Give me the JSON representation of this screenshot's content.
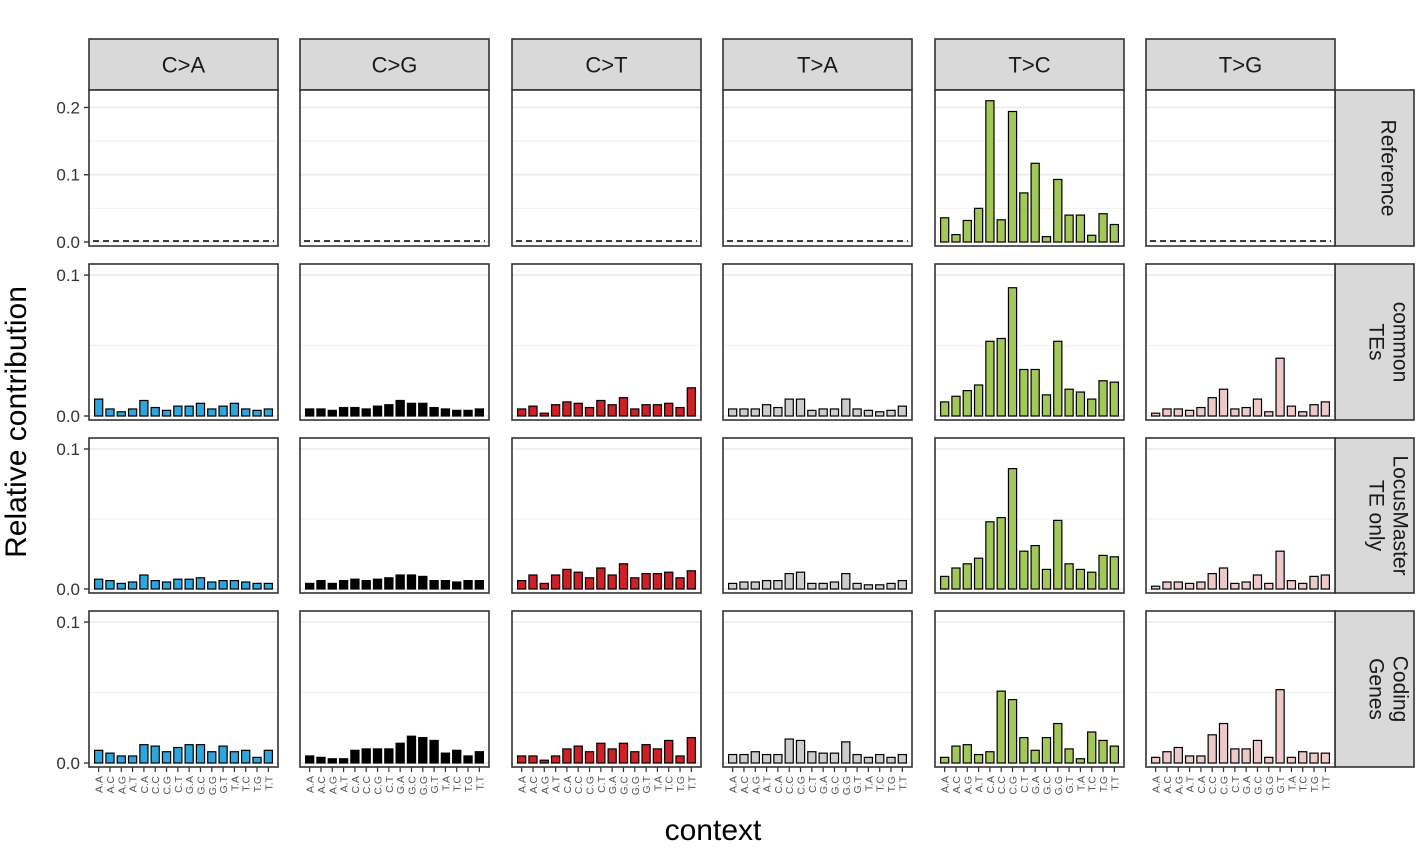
{
  "chart_data": {
    "type": "bar",
    "title": "",
    "xlabel": "context",
    "ylabel": "Relative contribution",
    "facet_columns": [
      "C>A",
      "C>G",
      "C>T",
      "T>A",
      "T>C",
      "T>G"
    ],
    "facet_rows": [
      {
        "label_lines": [
          "Reference"
        ],
        "ylim": [
          0,
          0.22
        ],
        "ticks": [
          0.0,
          0.1,
          0.2
        ],
        "tick_labels": [
          "0.0",
          "0.1",
          "0.2"
        ]
      },
      {
        "label_lines": [
          "common",
          "TEs"
        ],
        "ylim": [
          0,
          0.105
        ],
        "ticks": [
          0.0,
          0.1
        ],
        "tick_labels": [
          "0.0",
          "0.1"
        ]
      },
      {
        "label_lines": [
          "LocusMaster",
          "TE only"
        ],
        "ylim": [
          0,
          0.105
        ],
        "ticks": [
          0.0,
          0.1
        ],
        "tick_labels": [
          "0.0",
          "0.1"
        ]
      },
      {
        "label_lines": [
          "Coding",
          "Genes"
        ],
        "ylim": [
          0,
          0.105
        ],
        "ticks": [
          0.0,
          0.1
        ],
        "tick_labels": [
          "0.0",
          "0.1"
        ]
      }
    ],
    "contexts": [
      "A.A",
      "A.C",
      "A.G",
      "A.T",
      "C.A",
      "C.C",
      "C.G",
      "C.T",
      "G.A",
      "G.C",
      "G.G",
      "G.T",
      "T.A",
      "T.C",
      "T.G",
      "T.T"
    ],
    "colors": {
      "C>A": "#2ea5dc",
      "C>G": "#000000",
      "C>T": "#cd2027",
      "T>A": "#cccccc",
      "T>C": "#a3c759",
      "T>G": "#eec9c9"
    },
    "values": {
      "Reference": {
        "C>A": [
          0.001,
          0.001,
          0.001,
          0.001,
          0.001,
          0.001,
          0.001,
          0.001,
          0.001,
          0.001,
          0.001,
          0.001,
          0.001,
          0.001,
          0.001,
          0.001
        ],
        "C>G": [
          0.001,
          0.001,
          0.001,
          0.001,
          0.001,
          0.001,
          0.001,
          0.001,
          0.001,
          0.001,
          0.001,
          0.001,
          0.001,
          0.001,
          0.001,
          0.001
        ],
        "C>T": [
          0.001,
          0.001,
          0.001,
          0.001,
          0.001,
          0.001,
          0.001,
          0.002,
          0.001,
          0.001,
          0.001,
          0.001,
          0.001,
          0.001,
          0.001,
          0.001
        ],
        "T>A": [
          0.001,
          0.001,
          0.001,
          0.001,
          0.001,
          0.001,
          0.001,
          0.001,
          0.001,
          0.001,
          0.001,
          0.001,
          0.001,
          0.001,
          0.001,
          0.001
        ],
        "T>C": [
          0.036,
          0.011,
          0.032,
          0.05,
          0.21,
          0.033,
          0.194,
          0.073,
          0.117,
          0.008,
          0.093,
          0.04,
          0.04,
          0.01,
          0.042,
          0.026
        ],
        "T>G": [
          0.001,
          0.001,
          0.001,
          0.001,
          0.001,
          0.001,
          0.001,
          0.001,
          0.001,
          0.001,
          0.001,
          0.001,
          0.001,
          0.001,
          0.001,
          0.001
        ]
      },
      "common TEs": {
        "C>A": [
          0.012,
          0.005,
          0.003,
          0.005,
          0.011,
          0.006,
          0.004,
          0.007,
          0.007,
          0.009,
          0.005,
          0.007,
          0.009,
          0.005,
          0.004,
          0.005
        ],
        "C>G": [
          0.005,
          0.005,
          0.004,
          0.006,
          0.006,
          0.005,
          0.007,
          0.008,
          0.011,
          0.009,
          0.009,
          0.006,
          0.005,
          0.004,
          0.004,
          0.005
        ],
        "C>T": [
          0.005,
          0.007,
          0.002,
          0.008,
          0.01,
          0.009,
          0.006,
          0.011,
          0.008,
          0.013,
          0.005,
          0.008,
          0.008,
          0.009,
          0.006,
          0.02
        ],
        "T>A": [
          0.005,
          0.005,
          0.005,
          0.008,
          0.006,
          0.012,
          0.012,
          0.004,
          0.005,
          0.005,
          0.012,
          0.005,
          0.004,
          0.003,
          0.004,
          0.007
        ],
        "T>C": [
          0.01,
          0.014,
          0.018,
          0.022,
          0.053,
          0.055,
          0.091,
          0.033,
          0.033,
          0.015,
          0.053,
          0.019,
          0.017,
          0.012,
          0.025,
          0.024
        ],
        "T>G": [
          0.002,
          0.005,
          0.005,
          0.004,
          0.006,
          0.013,
          0.019,
          0.005,
          0.006,
          0.012,
          0.003,
          0.041,
          0.007,
          0.003,
          0.008,
          0.01
        ]
      },
      "LocusMaster TE only": {
        "C>A": [
          0.007,
          0.006,
          0.004,
          0.005,
          0.01,
          0.006,
          0.005,
          0.007,
          0.007,
          0.008,
          0.005,
          0.006,
          0.006,
          0.005,
          0.004,
          0.004
        ],
        "C>G": [
          0.004,
          0.006,
          0.004,
          0.006,
          0.007,
          0.006,
          0.007,
          0.008,
          0.01,
          0.01,
          0.009,
          0.006,
          0.006,
          0.005,
          0.006,
          0.006
        ],
        "C>T": [
          0.006,
          0.01,
          0.004,
          0.01,
          0.014,
          0.012,
          0.008,
          0.015,
          0.01,
          0.018,
          0.008,
          0.011,
          0.011,
          0.012,
          0.008,
          0.013
        ],
        "T>A": [
          0.004,
          0.005,
          0.005,
          0.006,
          0.006,
          0.011,
          0.012,
          0.004,
          0.004,
          0.005,
          0.011,
          0.004,
          0.003,
          0.003,
          0.004,
          0.006
        ],
        "T>C": [
          0.009,
          0.015,
          0.018,
          0.022,
          0.048,
          0.051,
          0.086,
          0.027,
          0.031,
          0.014,
          0.049,
          0.018,
          0.014,
          0.012,
          0.024,
          0.023
        ],
        "T>G": [
          0.002,
          0.005,
          0.005,
          0.004,
          0.005,
          0.011,
          0.015,
          0.004,
          0.005,
          0.01,
          0.004,
          0.027,
          0.006,
          0.004,
          0.009,
          0.01
        ]
      },
      "Coding Genes": {
        "C>A": [
          0.009,
          0.007,
          0.005,
          0.005,
          0.013,
          0.012,
          0.008,
          0.011,
          0.013,
          0.013,
          0.008,
          0.012,
          0.008,
          0.009,
          0.004,
          0.009
        ],
        "C>G": [
          0.005,
          0.004,
          0.003,
          0.003,
          0.009,
          0.01,
          0.01,
          0.01,
          0.014,
          0.019,
          0.018,
          0.016,
          0.007,
          0.009,
          0.005,
          0.008
        ],
        "C>T": [
          0.005,
          0.005,
          0.002,
          0.005,
          0.01,
          0.012,
          0.008,
          0.014,
          0.01,
          0.014,
          0.008,
          0.013,
          0.01,
          0.016,
          0.005,
          0.018
        ],
        "T>A": [
          0.006,
          0.006,
          0.008,
          0.006,
          0.006,
          0.017,
          0.016,
          0.008,
          0.007,
          0.007,
          0.015,
          0.006,
          0.004,
          0.006,
          0.004,
          0.006
        ],
        "T>C": [
          0.004,
          0.012,
          0.013,
          0.006,
          0.008,
          0.051,
          0.045,
          0.018,
          0.009,
          0.018,
          0.028,
          0.01,
          0.003,
          0.022,
          0.016,
          0.012
        ],
        "T>G": [
          0.004,
          0.008,
          0.011,
          0.005,
          0.005,
          0.02,
          0.028,
          0.01,
          0.01,
          0.016,
          0.004,
          0.052,
          0.004,
          0.008,
          0.007,
          0.007
        ]
      }
    }
  }
}
